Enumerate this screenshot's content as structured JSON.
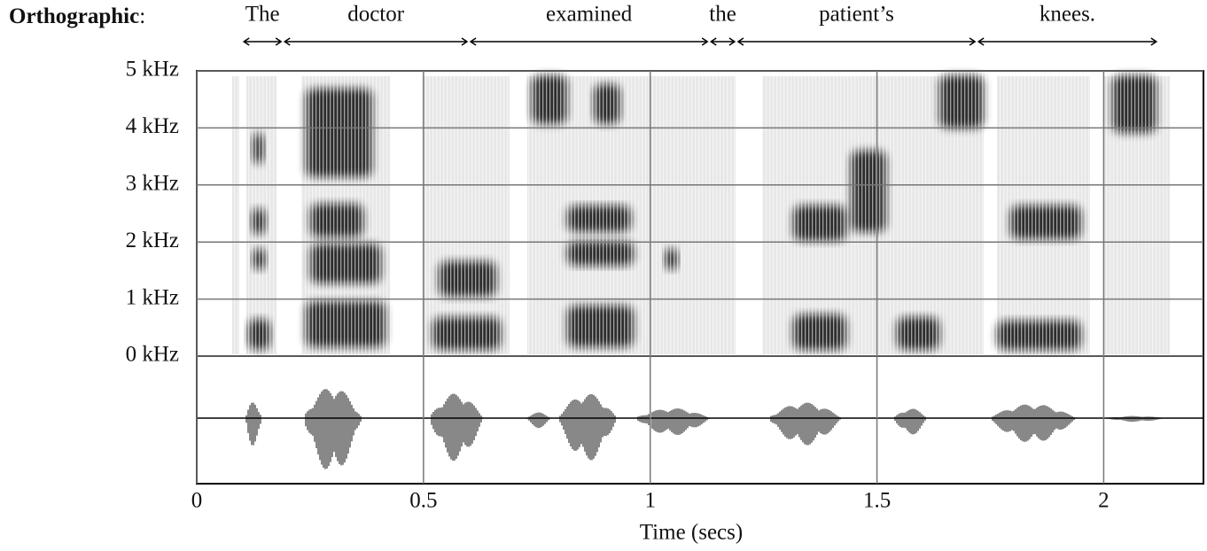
{
  "chart_data": {
    "type": "spectrogram",
    "row_label": "Orthographic",
    "row_label_suffix": ":",
    "segments": [
      {
        "label": "The",
        "start": 0.1,
        "end": 0.19
      },
      {
        "label": "doctor",
        "start": 0.19,
        "end": 0.6
      },
      {
        "label": "examined",
        "start": 0.6,
        "end": 1.13
      },
      {
        "label": "the",
        "start": 1.13,
        "end": 1.19
      },
      {
        "label": "patient’s",
        "start": 1.19,
        "end": 1.72
      },
      {
        "label": "knees.",
        "start": 1.72,
        "end": 2.12
      }
    ],
    "xlabel": "Time (secs)",
    "xlim": [
      0,
      2.22
    ],
    "xticks": [
      0,
      0.5,
      1,
      1.5,
      2
    ],
    "ylim": [
      0,
      5
    ],
    "yticks": [
      {
        "value": 0,
        "label": "0 kHz"
      },
      {
        "value": 1,
        "label": "1 kHz"
      },
      {
        "value": 2,
        "label": "2 kHz"
      },
      {
        "value": 3,
        "label": "3 kHz"
      },
      {
        "value": 4,
        "label": "4 kHz"
      },
      {
        "value": 5,
        "label": "5 kHz"
      }
    ],
    "grid": true
  }
}
